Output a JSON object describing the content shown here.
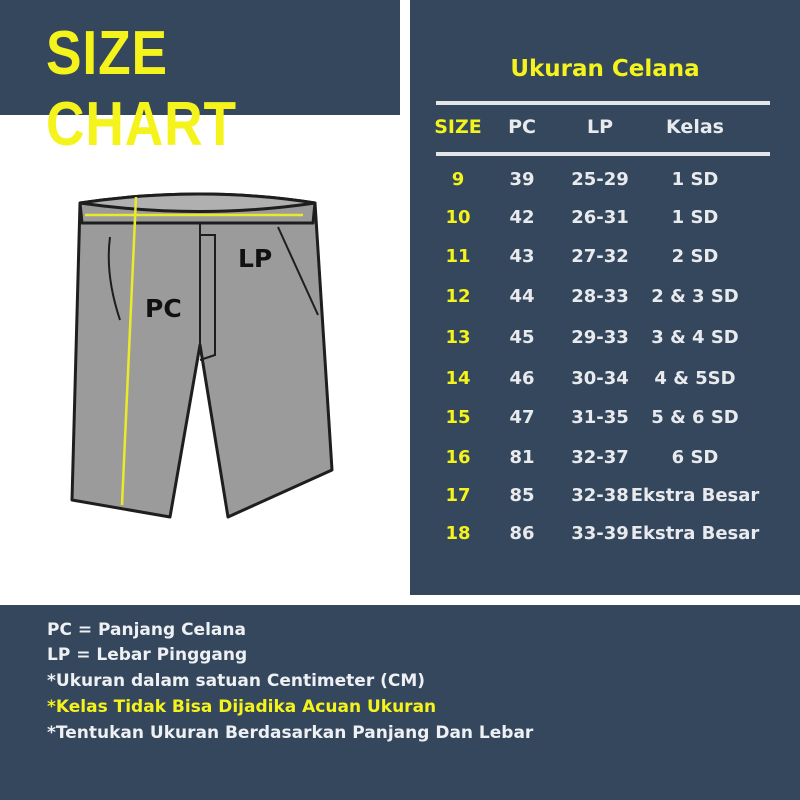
{
  "title": "SIZE CHART",
  "illustration": {
    "pc_label": "PC",
    "lp_label": "LP"
  },
  "table": {
    "title": "Ukuran Celana",
    "headers": [
      "SIZE",
      "PC",
      "LP",
      "Kelas"
    ],
    "rows": [
      [
        "9",
        "39",
        "25-29",
        "1 SD"
      ],
      [
        "10",
        "42",
        "26-31",
        "1 SD"
      ],
      [
        "11",
        "43",
        "27-32",
        "2 SD"
      ],
      [
        "12",
        "44",
        "28-33",
        "2 & 3 SD"
      ],
      [
        "13",
        "45",
        "29-33",
        "3 & 4 SD"
      ],
      [
        "14",
        "46",
        "30-34",
        "4 & 5SD"
      ],
      [
        "15",
        "47",
        "31-35",
        "5 & 6 SD"
      ],
      [
        "16",
        "81",
        "32-37",
        "6 SD"
      ],
      [
        "17",
        "85",
        "32-38",
        "Ekstra Besar"
      ],
      [
        "18",
        "86",
        "33-39",
        "Ekstra Besar"
      ]
    ]
  },
  "notes": [
    "PC = Panjang Celana",
    "LP = Lebar Pinggang",
    "*Ukuran dalam satuan Centimeter (CM)",
    "*Kelas Tidak Bisa Dijadika Acuan Ukuran",
    "*Tentukan Ukuran Berdasarkan Panjang Dan Lebar"
  ],
  "colors": {
    "navy": "#34475c",
    "accent": "#f5f31c"
  }
}
